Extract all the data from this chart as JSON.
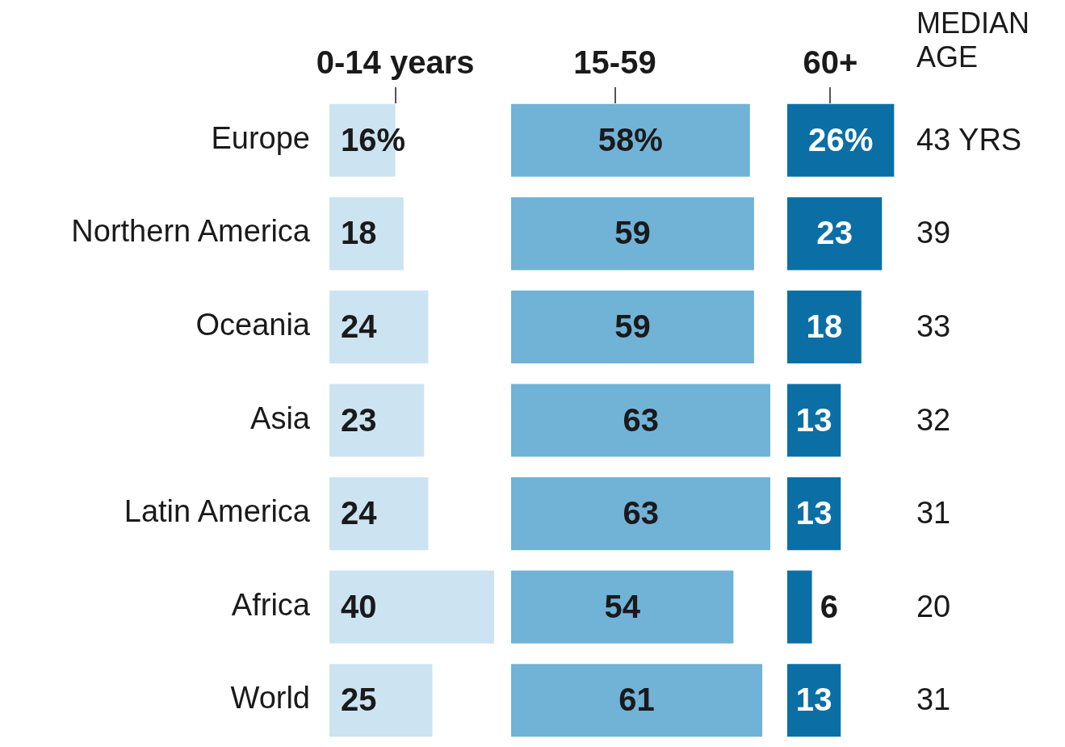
{
  "chart_data": [
    {
      "type": "bar",
      "orientation": "horizontal",
      "title": "0-14 years",
      "categories": [
        "Europe",
        "Northern America",
        "Oceania",
        "Asia",
        "Latin America",
        "Africa",
        "World"
      ],
      "values": [
        16,
        18,
        24,
        23,
        24,
        40,
        25
      ],
      "value_labels": [
        "16%",
        "18",
        "24",
        "23",
        "24",
        "40",
        "25"
      ],
      "color": "#cce3f1"
    },
    {
      "type": "bar",
      "orientation": "horizontal",
      "title": "15-59",
      "categories": [
        null,
        null,
        null,
        null,
        null,
        null,
        null
      ],
      "values": [
        58,
        59,
        59,
        63,
        63,
        54,
        61
      ],
      "value_labels": [
        "58%",
        "59",
        "59",
        "63",
        "63",
        "54",
        "61"
      ],
      "color": "#71b2d7"
    },
    {
      "type": "bar",
      "orientation": "horizontal",
      "title": "60+",
      "categories": [
        null,
        null,
        null,
        null,
        null,
        null,
        null
      ],
      "values": [
        26,
        23,
        18,
        13,
        13,
        6,
        13
      ],
      "value_labels": [
        "26%",
        "23",
        "18",
        "13",
        "13",
        "6",
        "13"
      ],
      "color": "#0b6fa6"
    },
    {
      "type": "other",
      "title": "MEDIAN AGE",
      "annotations": [
        "43 YRS",
        "39",
        "33",
        "32",
        "31",
        "20",
        "31"
      ]
    }
  ]
}
